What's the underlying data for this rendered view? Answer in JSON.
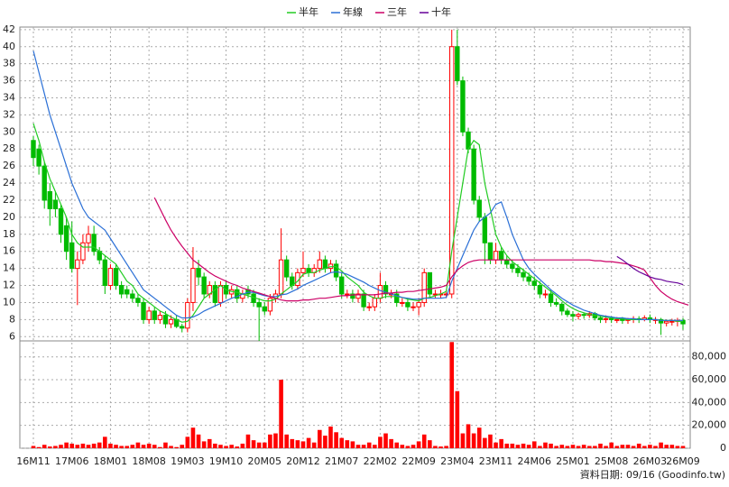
{
  "chart_data": [
    {
      "type": "candlestick",
      "up_color": "#ff0000",
      "down_color": "#00bb00",
      "ylim": [
        5.5,
        42.3
      ],
      "yticks": [
        6,
        8,
        10,
        12,
        14,
        16,
        18,
        20,
        22,
        24,
        26,
        28,
        30,
        32,
        34,
        36,
        38,
        40,
        42
      ],
      "grid": true,
      "open": [
        29,
        28,
        26,
        23,
        22,
        21,
        19,
        17,
        14,
        15,
        17,
        18,
        16,
        15,
        12,
        14,
        12,
        11.5,
        11,
        10.5,
        10,
        8,
        9,
        8,
        8.5,
        7.5,
        8,
        7.2,
        7,
        10,
        14,
        13,
        11,
        12,
        10,
        12,
        11,
        11.5,
        10.5,
        11.5,
        11,
        10,
        9.5,
        9,
        10.5,
        11,
        15,
        13,
        12,
        13.5,
        14,
        13.5,
        14,
        15,
        14,
        14.5,
        13,
        11,
        11,
        10.5,
        11,
        9.5,
        9.5,
        10.5,
        12,
        11,
        11,
        10,
        10,
        9.5,
        9.5,
        10,
        13.5,
        11,
        11,
        11,
        11,
        40,
        36,
        30,
        28,
        22,
        20,
        17,
        15,
        16,
        15,
        14.5,
        14,
        13.5,
        13,
        12.5,
        12,
        11,
        11,
        10,
        9.8,
        9,
        8.6,
        8.4,
        8.6,
        8.5,
        8.7,
        8.2,
        8,
        8.1,
        8,
        8,
        7.9,
        8,
        8.1,
        8,
        8.2,
        8,
        8,
        7.6,
        7.8,
        7.8,
        7.9
      ],
      "high": [
        29.5,
        28.5,
        26.5,
        24,
        23,
        21.5,
        20,
        19.5,
        16,
        18,
        19,
        19,
        16.5,
        15.5,
        14.5,
        14.5,
        12.5,
        12,
        11.5,
        11,
        10.5,
        9.5,
        9.5,
        9,
        9,
        8.5,
        8.5,
        7.5,
        10.5,
        16.5,
        15,
        13.5,
        12.5,
        12.5,
        12.5,
        12.5,
        12,
        12,
        11.5,
        12,
        11.5,
        10.5,
        10,
        11,
        11.5,
        18.7,
        15.5,
        13.5,
        14,
        16,
        14.5,
        14.5,
        16,
        15.5,
        15,
        15,
        13.5,
        11.5,
        11.5,
        11.5,
        11.5,
        10,
        11,
        13.5,
        12.5,
        11.5,
        11.5,
        10.5,
        10.5,
        10,
        10.5,
        14,
        13.5,
        11.5,
        11.5,
        11.5,
        42,
        42,
        36.5,
        30.5,
        28.5,
        22.5,
        20.5,
        17,
        17,
        16.5,
        15.5,
        15,
        14.5,
        14,
        13.5,
        13,
        12.5,
        11.5,
        11.5,
        10.5,
        10,
        9.3,
        9,
        8.8,
        8.8,
        9,
        8.9,
        8.5,
        8.5,
        8.4,
        8.3,
        8.3,
        8.2,
        8.4,
        8.4,
        8.5,
        8.6,
        8.3,
        8.2,
        8,
        8.1,
        8.2,
        8.2
      ],
      "low": [
        26,
        25,
        21,
        19,
        20,
        17,
        15,
        13.5,
        9.7,
        14.5,
        16,
        15.5,
        14.5,
        11,
        11.5,
        11.5,
        10.5,
        10.5,
        10,
        9.5,
        7.5,
        7.5,
        7.5,
        7.5,
        7,
        7,
        7,
        6.5,
        6.5,
        9,
        12,
        10.5,
        10.5,
        9.5,
        9.5,
        10.5,
        10.5,
        10,
        10,
        10.5,
        9.5,
        5.5,
        8.5,
        8.5,
        10,
        10.5,
        12.5,
        11.5,
        11.5,
        13,
        13,
        13,
        13.5,
        13.5,
        13.5,
        12.5,
        10.5,
        10.5,
        10,
        10,
        9,
        9,
        9,
        10,
        10.5,
        10.5,
        9.5,
        9.5,
        9,
        9,
        8.5,
        9.5,
        10.5,
        10.5,
        10.5,
        10.5,
        10.5,
        35.5,
        29.5,
        27.5,
        21.5,
        19.5,
        14.5,
        14.5,
        14.5,
        14.5,
        14,
        13.5,
        13,
        12.5,
        12,
        11.5,
        10.5,
        10.5,
        9.5,
        9.5,
        8.5,
        8.3,
        7.8,
        8,
        8.1,
        8.2,
        7.9,
        7.6,
        7.6,
        7.6,
        7.6,
        7.5,
        7.5,
        7.6,
        7.6,
        7.8,
        7.6,
        7.5,
        6.2,
        7.2,
        7.3,
        7.2,
        6.8
      ],
      "close": [
        27,
        26,
        22,
        21,
        21,
        18,
        16,
        14,
        15,
        17,
        18,
        16,
        15,
        12,
        14,
        12,
        11,
        11,
        10.5,
        10,
        8,
        9,
        8,
        8.5,
        7.5,
        8,
        7.2,
        7,
        10,
        14,
        13,
        11,
        12,
        10,
        12,
        11,
        11.5,
        10.5,
        11,
        11,
        10,
        9.5,
        9,
        10.5,
        11,
        15,
        13,
        12,
        13.5,
        14,
        13.5,
        14,
        15,
        14,
        14.5,
        13,
        11,
        11,
        10.5,
        11,
        9.5,
        9.5,
        10.5,
        12,
        11,
        11,
        10,
        10,
        9.5,
        9.5,
        10,
        13.5,
        11,
        11,
        11,
        11,
        40,
        36,
        30,
        28,
        22,
        20,
        17,
        15,
        16,
        15,
        14.5,
        14,
        13.5,
        13,
        12.5,
        12,
        11,
        11,
        10,
        9.8,
        9,
        8.6,
        8.4,
        8.6,
        8.5,
        8.7,
        8.2,
        8,
        8.1,
        8,
        8,
        7.9,
        8,
        8.1,
        8,
        8.2,
        8,
        8,
        7.6,
        7.8,
        7.8,
        7.9,
        7.5
      ],
      "series": [
        {
          "name": "半年",
          "color": "#22cc22",
          "values": [
            31,
            29,
            26.5,
            24.5,
            23,
            21.5,
            20,
            18,
            17,
            16.5,
            16.5,
            16.5,
            16,
            15.5,
            15,
            14.5,
            13.5,
            12.5,
            12,
            11,
            10.5,
            10,
            9.5,
            9,
            8.7,
            8.3,
            8,
            7.7,
            7.8,
            8.5,
            9.5,
            10.5,
            11,
            11.5,
            12,
            11.5,
            11.3,
            11.2,
            11,
            10.8,
            10.6,
            10.4,
            10.2,
            10.2,
            10.4,
            11,
            11.5,
            12,
            12.5,
            13.3,
            13.5,
            13.5,
            13.8,
            14,
            14.2,
            14.2,
            13.7,
            13,
            12.5,
            12,
            11.2,
            10.8,
            10.5,
            10.5,
            10.7,
            10.7,
            10.7,
            10.6,
            10.4,
            10.3,
            10.2,
            10.5,
            10.6,
            10.8,
            11,
            11.3,
            16,
            20,
            24,
            28,
            29,
            28.5,
            24,
            21,
            18,
            16.5,
            15.5,
            14.8,
            14.3,
            13.8,
            13.3,
            12.8,
            12.3,
            11.8,
            11.3,
            10.8,
            10.2,
            9.7,
            9.3,
            9,
            8.8,
            8.6,
            8.5,
            8.4,
            8.3,
            8.2,
            8.1,
            8.1,
            8,
            8,
            8,
            8,
            8,
            8,
            7.9,
            7.9,
            7.9,
            7.8,
            7.8
          ]
        },
        {
          "name": "年線",
          "color": "#2a6fd6",
          "values": [
            39.5,
            37,
            34.5,
            32,
            30,
            28,
            26,
            24,
            22.5,
            21,
            20,
            19.5,
            19,
            18.5,
            17.5,
            16.5,
            15.5,
            14.5,
            13.5,
            12.5,
            11.5,
            11,
            10.5,
            10,
            9.5,
            9,
            8.5,
            8.2,
            8.2,
            8.3,
            8.6,
            9,
            9.3,
            9.6,
            9.9,
            10.2,
            10.5,
            10.7,
            11,
            11.2,
            11.2,
            11,
            10.8,
            10.7,
            10.7,
            10.9,
            11,
            11.3,
            11.6,
            12,
            12.3,
            12.6,
            12.9,
            13.2,
            13.5,
            13.6,
            13.5,
            13.3,
            13,
            12.7,
            12.4,
            12,
            11.7,
            11.4,
            11.2,
            11,
            10.8,
            10.6,
            10.5,
            10.4,
            10.4,
            10.5,
            10.5,
            10.5,
            10.5,
            10.6,
            12.5,
            14,
            15.5,
            17,
            18.5,
            19.5,
            20,
            20.5,
            21.5,
            21.8,
            20,
            18,
            16.5,
            15,
            14,
            13.3,
            12.7,
            12.1,
            11.5,
            11,
            10.5,
            10.1,
            9.7,
            9.4,
            9.1,
            8.9,
            8.7,
            8.5,
            8.4,
            8.3,
            8.2,
            8.2,
            8.1,
            8.1,
            8,
            8,
            8,
            8,
            7.9,
            7.9,
            7.9,
            7.9,
            7.9
          ]
        },
        {
          "name": "三年",
          "color": "#cc0066",
          "values": [
            null,
            null,
            null,
            null,
            null,
            null,
            null,
            null,
            null,
            null,
            null,
            null,
            null,
            null,
            null,
            null,
            null,
            null,
            null,
            null,
            null,
            null,
            22.3,
            21,
            19.7,
            18.5,
            17.5,
            16.6,
            15.8,
            15,
            14.5,
            14,
            13.5,
            13.1,
            12.8,
            12.5,
            12.2,
            12,
            11.7,
            11.5,
            11.3,
            11.1,
            10.9,
            10.7,
            10.5,
            10.3,
            10.2,
            10.2,
            10.2,
            10.3,
            10.3,
            10.4,
            10.5,
            10.5,
            10.6,
            10.7,
            10.8,
            10.8,
            10.9,
            10.9,
            10.9,
            10.9,
            10.9,
            11,
            11.1,
            11.1,
            11.2,
            11.2,
            11.3,
            11.3,
            11.4,
            11.5,
            11.6,
            11.7,
            11.8,
            12,
            13,
            13.8,
            14.3,
            14.7,
            14.9,
            15,
            15,
            15,
            15,
            15,
            15,
            15,
            15,
            15,
            15,
            15,
            15,
            15,
            15,
            15,
            15,
            15,
            15,
            15,
            15,
            15,
            14.9,
            14.9,
            14.8,
            14.8,
            14.7,
            14.6,
            14.5,
            14.3,
            14.1,
            13.8,
            12.9,
            12,
            11.3,
            10.8,
            10.4,
            10.1,
            9.9,
            9.7
          ]
        },
        {
          "name": "十年",
          "color": "#660099",
          "values": [
            null,
            null,
            null,
            null,
            null,
            null,
            null,
            null,
            null,
            null,
            null,
            null,
            null,
            null,
            null,
            null,
            null,
            null,
            null,
            null,
            null,
            null,
            null,
            null,
            null,
            null,
            null,
            null,
            null,
            null,
            null,
            null,
            null,
            null,
            null,
            null,
            null,
            null,
            null,
            null,
            null,
            null,
            null,
            null,
            null,
            null,
            null,
            null,
            null,
            null,
            null,
            null,
            null,
            null,
            null,
            null,
            null,
            null,
            null,
            null,
            null,
            null,
            null,
            null,
            null,
            null,
            null,
            null,
            null,
            null,
            null,
            null,
            null,
            null,
            null,
            null,
            null,
            null,
            null,
            null,
            null,
            null,
            null,
            null,
            null,
            null,
            null,
            null,
            null,
            null,
            null,
            null,
            null,
            null,
            null,
            null,
            null,
            null,
            null,
            null,
            null,
            null,
            null,
            null,
            null,
            null,
            15.4,
            15,
            14.5,
            14,
            13.6,
            13.3,
            13,
            12.8,
            12.7,
            12.5,
            12.4,
            12.3,
            12.1
          ]
        }
      ]
    },
    {
      "type": "bar",
      "color": "#ff0000",
      "ylim": [
        0,
        94000
      ],
      "yticks": [
        0,
        {
          "value": 20000,
          "label": "20,000"
        },
        {
          "value": 40000,
          "label": "40,000"
        },
        {
          "value": 60000,
          "label": "60,000"
        },
        {
          "value": 80000,
          "label": "80,000"
        }
      ],
      "grid": true,
      "categories": [
        "16M11",
        null,
        null,
        null,
        null,
        null,
        null,
        "17M06",
        null,
        null,
        null,
        null,
        null,
        null,
        "18M01",
        null,
        null,
        null,
        null,
        null,
        null,
        "18M08",
        null,
        null,
        null,
        null,
        null,
        null,
        "19M03",
        null,
        null,
        null,
        null,
        null,
        null,
        "19M10",
        null,
        null,
        null,
        null,
        null,
        null,
        "20M05",
        null,
        null,
        null,
        null,
        null,
        null,
        "20M12",
        null,
        null,
        null,
        null,
        null,
        null,
        "21M07",
        null,
        null,
        null,
        null,
        null,
        null,
        "22M02",
        null,
        null,
        null,
        null,
        null,
        null,
        "22M09",
        null,
        null,
        null,
        null,
        null,
        null,
        "23M04",
        null,
        null,
        null,
        null,
        null,
        null,
        "23M11",
        null,
        null,
        null,
        null,
        null,
        null,
        "24M06",
        null,
        null,
        null,
        null,
        null,
        null,
        "25M01",
        null,
        null,
        null,
        null,
        null,
        null,
        "25M08",
        null,
        null,
        null,
        null,
        null,
        null,
        "26M03",
        null,
        null,
        null,
        null,
        null,
        "26M09"
      ],
      "values": [
        2000,
        1000,
        3000,
        1500,
        2000,
        3000,
        5000,
        4000,
        3000,
        4000,
        3000,
        4000,
        5000,
        10000,
        4000,
        3000,
        2000,
        2000,
        3000,
        5000,
        3000,
        4000,
        3000,
        1000,
        5000,
        2000,
        1000,
        3000,
        10000,
        18000,
        12000,
        6000,
        8000,
        4000,
        3000,
        2000,
        3000,
        1500,
        4000,
        12000,
        7000,
        5000,
        5000,
        12000,
        13000,
        60000,
        12000,
        8000,
        7000,
        6000,
        9000,
        5000,
        16000,
        11000,
        19000,
        14000,
        9000,
        7000,
        6000,
        3000,
        3000,
        5000,
        3000,
        10000,
        13000,
        8000,
        5000,
        3000,
        2000,
        3000,
        6000,
        12000,
        7000,
        2000,
        1500,
        2000,
        93000,
        50000,
        13000,
        21000,
        13000,
        18000,
        9000,
        12000,
        5000,
        8000,
        4000,
        4000,
        3000,
        4000,
        3000,
        6000,
        2000,
        5000,
        4000,
        2000,
        3000,
        2000,
        3000,
        2000,
        3000,
        2000,
        2000,
        4000,
        2000,
        5000,
        2000,
        3000,
        3000,
        2000,
        4000,
        2000,
        3000,
        2000,
        5000,
        3000,
        3000,
        2000,
        2000
      ],
      "annotation": "資料日期: 09/16 (Goodinfo.tw)"
    }
  ]
}
